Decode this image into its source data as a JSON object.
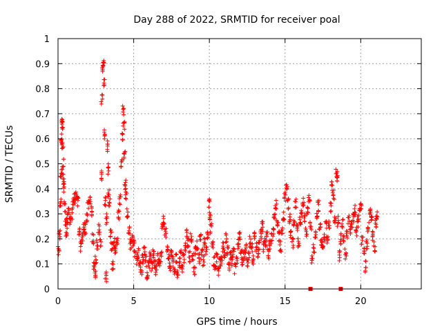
{
  "chart_data": {
    "type": "scatter",
    "title": "Day 288 of 2022, SRMTID for receiver poal",
    "xlabel": "GPS time / hours",
    "ylabel": "SRMTID / TECUs",
    "xlim": [
      0,
      24
    ],
    "ylim": [
      0,
      1
    ],
    "xticks": [
      0,
      5,
      10,
      15,
      20
    ],
    "yticks": [
      0,
      0.1,
      0.2,
      0.3,
      0.4,
      0.5,
      0.6,
      0.7,
      0.8,
      0.9,
      1
    ],
    "ytick_labels": [
      "0",
      "0.1",
      "0.2",
      "0.3",
      "0.4",
      "0.5",
      "0.6",
      "0.7",
      "0.8",
      "0.9",
      "1"
    ],
    "grid": true,
    "marker": "+",
    "series_color": "#ff0000",
    "series": [
      {
        "name": "SRMTID",
        "points": [
          [
            0.05,
            0.15
          ],
          [
            0.1,
            0.22
          ],
          [
            0.15,
            0.34
          ],
          [
            0.2,
            0.46
          ],
          [
            0.22,
            0.6
          ],
          [
            0.25,
            0.67
          ],
          [
            0.28,
            0.65
          ],
          [
            0.3,
            0.58
          ],
          [
            0.33,
            0.5
          ],
          [
            0.36,
            0.44
          ],
          [
            0.4,
            0.4
          ],
          [
            0.45,
            0.33
          ],
          [
            0.5,
            0.26
          ],
          [
            0.55,
            0.22
          ],
          [
            0.6,
            0.28
          ],
          [
            0.7,
            0.32
          ],
          [
            0.8,
            0.27
          ],
          [
            0.9,
            0.3
          ],
          [
            1.0,
            0.34
          ],
          [
            1.1,
            0.36
          ],
          [
            1.2,
            0.38
          ],
          [
            1.3,
            0.35
          ],
          [
            1.4,
            0.22
          ],
          [
            1.5,
            0.17
          ],
          [
            1.6,
            0.21
          ],
          [
            1.7,
            0.25
          ],
          [
            1.8,
            0.24
          ],
          [
            1.9,
            0.29
          ],
          [
            2.0,
            0.34
          ],
          [
            2.1,
            0.36
          ],
          [
            2.2,
            0.31
          ],
          [
            2.3,
            0.2
          ],
          [
            2.4,
            0.1
          ],
          [
            2.45,
            0.05
          ],
          [
            2.5,
            0.12
          ],
          [
            2.6,
            0.18
          ],
          [
            2.7,
            0.24
          ],
          [
            2.8,
            0.18
          ],
          [
            2.85,
            0.45
          ],
          [
            2.9,
            0.76
          ],
          [
            2.95,
            0.88
          ],
          [
            3.0,
            0.9
          ],
          [
            3.05,
            0.83
          ],
          [
            3.1,
            0.62
          ],
          [
            3.12,
            0.35
          ],
          [
            3.15,
            0.05
          ],
          [
            3.2,
            0.28
          ],
          [
            3.25,
            0.57
          ],
          [
            3.3,
            0.48
          ],
          [
            3.35,
            0.38
          ],
          [
            3.4,
            0.34
          ],
          [
            3.5,
            0.22
          ],
          [
            3.55,
            0.17
          ],
          [
            3.6,
            0.1
          ],
          [
            3.7,
            0.18
          ],
          [
            3.8,
            0.15
          ],
          [
            3.9,
            0.2
          ],
          [
            4.0,
            0.3
          ],
          [
            4.1,
            0.36
          ],
          [
            4.2,
            0.5
          ],
          [
            4.25,
            0.6
          ],
          [
            4.3,
            0.71
          ],
          [
            4.35,
            0.66
          ],
          [
            4.4,
            0.53
          ],
          [
            4.45,
            0.42
          ],
          [
            4.5,
            0.38
          ],
          [
            4.6,
            0.3
          ],
          [
            4.7,
            0.24
          ],
          [
            4.8,
            0.18
          ],
          [
            4.9,
            0.2
          ],
          [
            5.0,
            0.18
          ],
          [
            5.1,
            0.15
          ],
          [
            5.2,
            0.12
          ],
          [
            5.3,
            0.14
          ],
          [
            5.4,
            0.1
          ],
          [
            5.5,
            0.08
          ],
          [
            5.6,
            0.12
          ],
          [
            5.7,
            0.16
          ],
          [
            5.8,
            0.11
          ],
          [
            5.9,
            0.06
          ],
          [
            6.0,
            0.1
          ],
          [
            6.1,
            0.13
          ],
          [
            6.2,
            0.09
          ],
          [
            6.3,
            0.14
          ],
          [
            6.4,
            0.1
          ],
          [
            6.5,
            0.07
          ],
          [
            6.6,
            0.12
          ],
          [
            6.7,
            0.1
          ],
          [
            6.8,
            0.13
          ],
          [
            6.9,
            0.24
          ],
          [
            7.0,
            0.28
          ],
          [
            7.1,
            0.22
          ],
          [
            7.2,
            0.17
          ],
          [
            7.3,
            0.12
          ],
          [
            7.4,
            0.09
          ],
          [
            7.5,
            0.14
          ],
          [
            7.6,
            0.11
          ],
          [
            7.7,
            0.08
          ],
          [
            7.8,
            0.12
          ],
          [
            7.9,
            0.05
          ],
          [
            8.0,
            0.1
          ],
          [
            8.1,
            0.14
          ],
          [
            8.2,
            0.09
          ],
          [
            8.3,
            0.12
          ],
          [
            8.4,
            0.17
          ],
          [
            8.5,
            0.22
          ],
          [
            8.6,
            0.18
          ],
          [
            8.7,
            0.13
          ],
          [
            8.8,
            0.2
          ],
          [
            8.9,
            0.12
          ],
          [
            9.0,
            0.08
          ],
          [
            9.1,
            0.15
          ],
          [
            9.2,
            0.17
          ],
          [
            9.3,
            0.12
          ],
          [
            9.4,
            0.2
          ],
          [
            9.5,
            0.14
          ],
          [
            9.6,
            0.11
          ],
          [
            9.7,
            0.19
          ],
          [
            9.8,
            0.16
          ],
          [
            9.9,
            0.22
          ],
          [
            10.0,
            0.34
          ],
          [
            10.05,
            0.29
          ],
          [
            10.1,
            0.24
          ],
          [
            10.2,
            0.18
          ],
          [
            10.3,
            0.11
          ],
          [
            10.4,
            0.09
          ],
          [
            10.5,
            0.13
          ],
          [
            10.6,
            0.07
          ],
          [
            10.7,
            0.1
          ],
          [
            10.8,
            0.12
          ],
          [
            10.9,
            0.17
          ],
          [
            11.0,
            0.14
          ],
          [
            11.1,
            0.2
          ],
          [
            11.2,
            0.15
          ],
          [
            11.3,
            0.09
          ],
          [
            11.4,
            0.13
          ],
          [
            11.5,
            0.11
          ],
          [
            11.6,
            0.15
          ],
          [
            11.7,
            0.08
          ],
          [
            11.8,
            0.12
          ],
          [
            11.9,
            0.18
          ],
          [
            12.0,
            0.22
          ],
          [
            12.1,
            0.14
          ],
          [
            12.2,
            0.1
          ],
          [
            12.3,
            0.13
          ],
          [
            12.4,
            0.16
          ],
          [
            12.5,
            0.11
          ],
          [
            12.6,
            0.13
          ],
          [
            12.7,
            0.19
          ],
          [
            12.8,
            0.16
          ],
          [
            12.9,
            0.12
          ],
          [
            13.0,
            0.21
          ],
          [
            13.1,
            0.17
          ],
          [
            13.2,
            0.14
          ],
          [
            13.3,
            0.18
          ],
          [
            13.4,
            0.22
          ],
          [
            13.5,
            0.25
          ],
          [
            13.6,
            0.17
          ],
          [
            13.7,
            0.19
          ],
          [
            13.8,
            0.21
          ],
          [
            13.9,
            0.14
          ],
          [
            14.0,
            0.18
          ],
          [
            14.1,
            0.2
          ],
          [
            14.2,
            0.23
          ],
          [
            14.3,
            0.3
          ],
          [
            14.4,
            0.34
          ],
          [
            14.5,
            0.27
          ],
          [
            14.6,
            0.21
          ],
          [
            14.7,
            0.17
          ],
          [
            14.8,
            0.24
          ],
          [
            14.9,
            0.29
          ],
          [
            15.0,
            0.37
          ],
          [
            15.1,
            0.4
          ],
          [
            15.2,
            0.34
          ],
          [
            15.3,
            0.28
          ],
          [
            15.4,
            0.22
          ],
          [
            15.5,
            0.18
          ],
          [
            15.6,
            0.27
          ],
          [
            15.7,
            0.34
          ],
          [
            15.8,
            0.25
          ],
          [
            15.9,
            0.19
          ],
          [
            16.0,
            0.27
          ],
          [
            16.1,
            0.3
          ],
          [
            16.2,
            0.35
          ],
          [
            16.3,
            0.28
          ],
          [
            16.4,
            0.22
          ],
          [
            16.5,
            0.32
          ],
          [
            16.6,
            0.36
          ],
          [
            16.7,
            0.25
          ],
          [
            16.8,
            0.11
          ],
          [
            16.9,
            0.16
          ],
          [
            17.0,
            0.22
          ],
          [
            17.1,
            0.28
          ],
          [
            17.2,
            0.33
          ],
          [
            17.3,
            0.24
          ],
          [
            17.4,
            0.19
          ],
          [
            17.5,
            0.15
          ],
          [
            17.6,
            0.21
          ],
          [
            17.7,
            0.26
          ],
          [
            17.8,
            0.19
          ],
          [
            17.9,
            0.25
          ],
          [
            18.0,
            0.33
          ],
          [
            18.1,
            0.41
          ],
          [
            18.2,
            0.38
          ],
          [
            18.3,
            0.28
          ],
          [
            18.4,
            0.46
          ],
          [
            18.45,
            0.45
          ],
          [
            18.5,
            0.27
          ],
          [
            18.6,
            0.13
          ],
          [
            18.7,
            0.2
          ],
          [
            18.8,
            0.26
          ],
          [
            18.9,
            0.2
          ],
          [
            19.0,
            0.14
          ],
          [
            19.1,
            0.22
          ],
          [
            19.2,
            0.28
          ],
          [
            19.3,
            0.24
          ],
          [
            19.4,
            0.26
          ],
          [
            19.5,
            0.28
          ],
          [
            19.6,
            0.32
          ],
          [
            19.7,
            0.23
          ],
          [
            19.8,
            0.27
          ],
          [
            19.9,
            0.3
          ],
          [
            20.0,
            0.34
          ],
          [
            20.1,
            0.2
          ],
          [
            20.2,
            0.16
          ],
          [
            20.3,
            0.09
          ],
          [
            20.4,
            0.18
          ],
          [
            20.5,
            0.25
          ],
          [
            20.6,
            0.32
          ],
          [
            20.7,
            0.28
          ],
          [
            20.8,
            0.21
          ],
          [
            20.9,
            0.17
          ],
          [
            21.0,
            0.26
          ],
          [
            21.05,
            0.3
          ],
          [
            16.68,
            0.0
          ],
          [
            18.68,
            0.0
          ]
        ]
      }
    ]
  }
}
